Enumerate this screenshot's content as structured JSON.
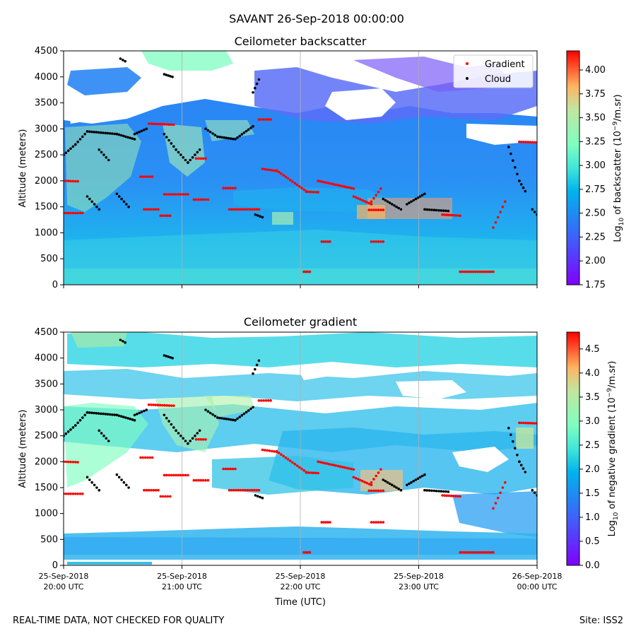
{
  "figure": {
    "suptitle": "SAVANT 26-Sep-2018 00:00:00",
    "footer_left": "REAL-TIME DATA, NOT CHECKED FOR QUALITY",
    "footer_right": "Site: ISS2"
  },
  "chart_data": [
    {
      "type": "heatmap",
      "title": "Ceilometer backscatter",
      "ylabel": "Altitude (meters)",
      "xlabel": "",
      "ylim": [
        0,
        4500
      ],
      "yticks": [
        "0",
        "500",
        "1000",
        "1500",
        "2000",
        "2500",
        "3000",
        "3500",
        "4000",
        "4500"
      ],
      "xticks": [],
      "colorbar": {
        "label": "Log10 of backscatter (10^-9/m.sr)",
        "label_parts": [
          "Log",
          "10",
          " of backscatter (10",
          "−9",
          "/m.sr)"
        ],
        "range": [
          1.75,
          4.2
        ],
        "ticks": [
          "1.75",
          "2.00",
          "2.25",
          "2.50",
          "2.75",
          "3.00",
          "3.25",
          "3.50",
          "3.75",
          "4.00"
        ],
        "colormap": "rainbow"
      },
      "legend": {
        "placement": "upper-right",
        "entries": [
          {
            "label": "Gradient",
            "color": "#ff0000",
            "marker": "dot"
          },
          {
            "label": "Cloud",
            "color": "#000000",
            "marker": "dot"
          }
        ]
      },
      "grid": "vertical"
    },
    {
      "type": "heatmap",
      "title": "Ceilometer gradient",
      "ylabel": "Altitude (meters)",
      "xlabel": "Time (UTC)",
      "ylim": [
        0,
        4500
      ],
      "yticks": [
        "0",
        "500",
        "1000",
        "1500",
        "2000",
        "2500",
        "3000",
        "3500",
        "4000",
        "4500"
      ],
      "xticks": [
        [
          "25-Sep-2018",
          "20:00 UTC"
        ],
        [
          "25-Sep-2018",
          "21:00 UTC"
        ],
        [
          "25-Sep-2018",
          "22:00 UTC"
        ],
        [
          "25-Sep-2018",
          "23:00 UTC"
        ],
        [
          "26-Sep-2018",
          "00:00 UTC"
        ]
      ],
      "colorbar": {
        "label": "Log10 of negative gradient (10^-9/m.sr)",
        "label_parts": [
          "Log",
          "10",
          " of negative gradient (10",
          "−9",
          "/m.sr)"
        ],
        "range": [
          0.0,
          4.85
        ],
        "ticks": [
          "0.0",
          "0.5",
          "1.0",
          "1.5",
          "2.0",
          "2.5",
          "3.0",
          "3.5",
          "4.0",
          "4.5"
        ],
        "colormap": "rainbow"
      },
      "grid": "vertical"
    }
  ],
  "overlay_data": {
    "time_unit": "hours since 25-Sep-2018 20:00 UTC",
    "gradient_segments": [
      {
        "t": [
          0.0,
          0.12
        ],
        "alt": [
          2000,
          1990
        ]
      },
      {
        "t": [
          0.0,
          0.16
        ],
        "alt": [
          1380,
          1380
        ]
      },
      {
        "t": [
          0.65,
          0.75
        ],
        "alt": [
          2080,
          2080
        ]
      },
      {
        "t": [
          0.68,
          0.8
        ],
        "alt": [
          1450,
          1450
        ]
      },
      {
        "t": [
          0.82,
          0.9
        ],
        "alt": [
          1330,
          1330
        ]
      },
      {
        "t": [
          0.85,
          1.05
        ],
        "alt": [
          1740,
          1740
        ]
      },
      {
        "t": [
          1.1,
          1.22
        ],
        "alt": [
          1640,
          1640
        ]
      },
      {
        "t": [
          1.35,
          1.45
        ],
        "alt": [
          1860,
          1860
        ]
      },
      {
        "t": [
          1.4,
          1.65
        ],
        "alt": [
          1450,
          1450
        ]
      },
      {
        "t": [
          1.65,
          1.75
        ],
        "alt": [
          3180,
          3180
        ]
      },
      {
        "t": [
          0.72,
          0.93
        ],
        "alt": [
          3100,
          3080
        ]
      },
      {
        "t": [
          1.68,
          1.8
        ],
        "alt": [
          2230,
          2190
        ]
      },
      {
        "t": [
          1.8,
          2.05
        ],
        "alt": [
          2200,
          1800
        ]
      },
      {
        "t": [
          2.05,
          2.15
        ],
        "alt": [
          1790,
          1780
        ]
      },
      {
        "t": [
          2.15,
          2.45
        ],
        "alt": [
          2000,
          1850
        ]
      },
      {
        "t": [
          2.45,
          2.6
        ],
        "alt": [
          1700,
          1550
        ]
      },
      {
        "t": [
          2.6,
          2.68
        ],
        "alt": [
          1600,
          1850
        ]
      },
      {
        "t": [
          2.58,
          2.7
        ],
        "alt": [
          1440,
          1440
        ]
      },
      {
        "t": [
          2.6,
          2.7
        ],
        "alt": [
          830,
          830
        ]
      },
      {
        "t": [
          3.2,
          3.35
        ],
        "alt": [
          1350,
          1330
        ]
      },
      {
        "t": [
          3.35,
          3.63
        ],
        "alt": [
          250,
          250
        ]
      },
      {
        "t": [
          3.63,
          3.73
        ],
        "alt": [
          1100,
          1600
        ]
      },
      {
        "t": [
          3.85,
          4.0
        ],
        "alt": [
          2750,
          2740
        ]
      },
      {
        "t": [
          1.12,
          1.2
        ],
        "alt": [
          2430,
          2430
        ]
      },
      {
        "t": [
          2.03,
          2.08
        ],
        "alt": [
          250,
          250
        ]
      },
      {
        "t": [
          2.18,
          2.25
        ],
        "alt": [
          830,
          830
        ]
      }
    ],
    "cloud_segments": [
      {
        "t": [
          0.0,
          0.1
        ],
        "alt": [
          2500,
          2700
        ]
      },
      {
        "t": [
          0.1,
          0.2
        ],
        "alt": [
          2700,
          2950
        ]
      },
      {
        "t": [
          0.2,
          0.45
        ],
        "alt": [
          2950,
          2900
        ]
      },
      {
        "t": [
          0.45,
          0.6
        ],
        "alt": [
          2900,
          2800
        ]
      },
      {
        "t": [
          0.6,
          0.7
        ],
        "alt": [
          2900,
          3000
        ]
      },
      {
        "t": [
          0.85,
          0.95
        ],
        "alt": [
          2900,
          2600
        ]
      },
      {
        "t": [
          0.95,
          1.05
        ],
        "alt": [
          2600,
          2350
        ]
      },
      {
        "t": [
          1.05,
          1.15
        ],
        "alt": [
          2350,
          2600
        ]
      },
      {
        "t": [
          1.2,
          1.3
        ],
        "alt": [
          3000,
          2850
        ]
      },
      {
        "t": [
          1.3,
          1.45
        ],
        "alt": [
          2850,
          2800
        ]
      },
      {
        "t": [
          1.45,
          1.6
        ],
        "alt": [
          2800,
          3050
        ]
      },
      {
        "t": [
          1.6,
          1.65
        ],
        "alt": [
          3700,
          3950
        ]
      },
      {
        "t": [
          0.85,
          0.92
        ],
        "alt": [
          4050,
          4000
        ]
      },
      {
        "t": [
          0.48,
          0.52
        ],
        "alt": [
          4350,
          4300
        ]
      },
      {
        "t": [
          0.2,
          0.3
        ],
        "alt": [
          1700,
          1450
        ]
      },
      {
        "t": [
          0.3,
          0.38
        ],
        "alt": [
          2600,
          2400
        ]
      },
      {
        "t": [
          0.45,
          0.55
        ],
        "alt": [
          1750,
          1500
        ]
      },
      {
        "t": [
          2.7,
          2.85
        ],
        "alt": [
          1650,
          1450
        ]
      },
      {
        "t": [
          2.9,
          3.05
        ],
        "alt": [
          1550,
          1750
        ]
      },
      {
        "t": [
          3.05,
          3.25
        ],
        "alt": [
          1450,
          1420
        ]
      },
      {
        "t": [
          3.76,
          3.85
        ],
        "alt": [
          2650,
          2000
        ]
      },
      {
        "t": [
          3.85,
          3.9
        ],
        "alt": [
          2000,
          1800
        ]
      },
      {
        "t": [
          3.96,
          4.0
        ],
        "alt": [
          1450,
          1350
        ]
      },
      {
        "t": [
          1.62,
          1.68
        ],
        "alt": [
          1350,
          1300
        ]
      }
    ]
  }
}
